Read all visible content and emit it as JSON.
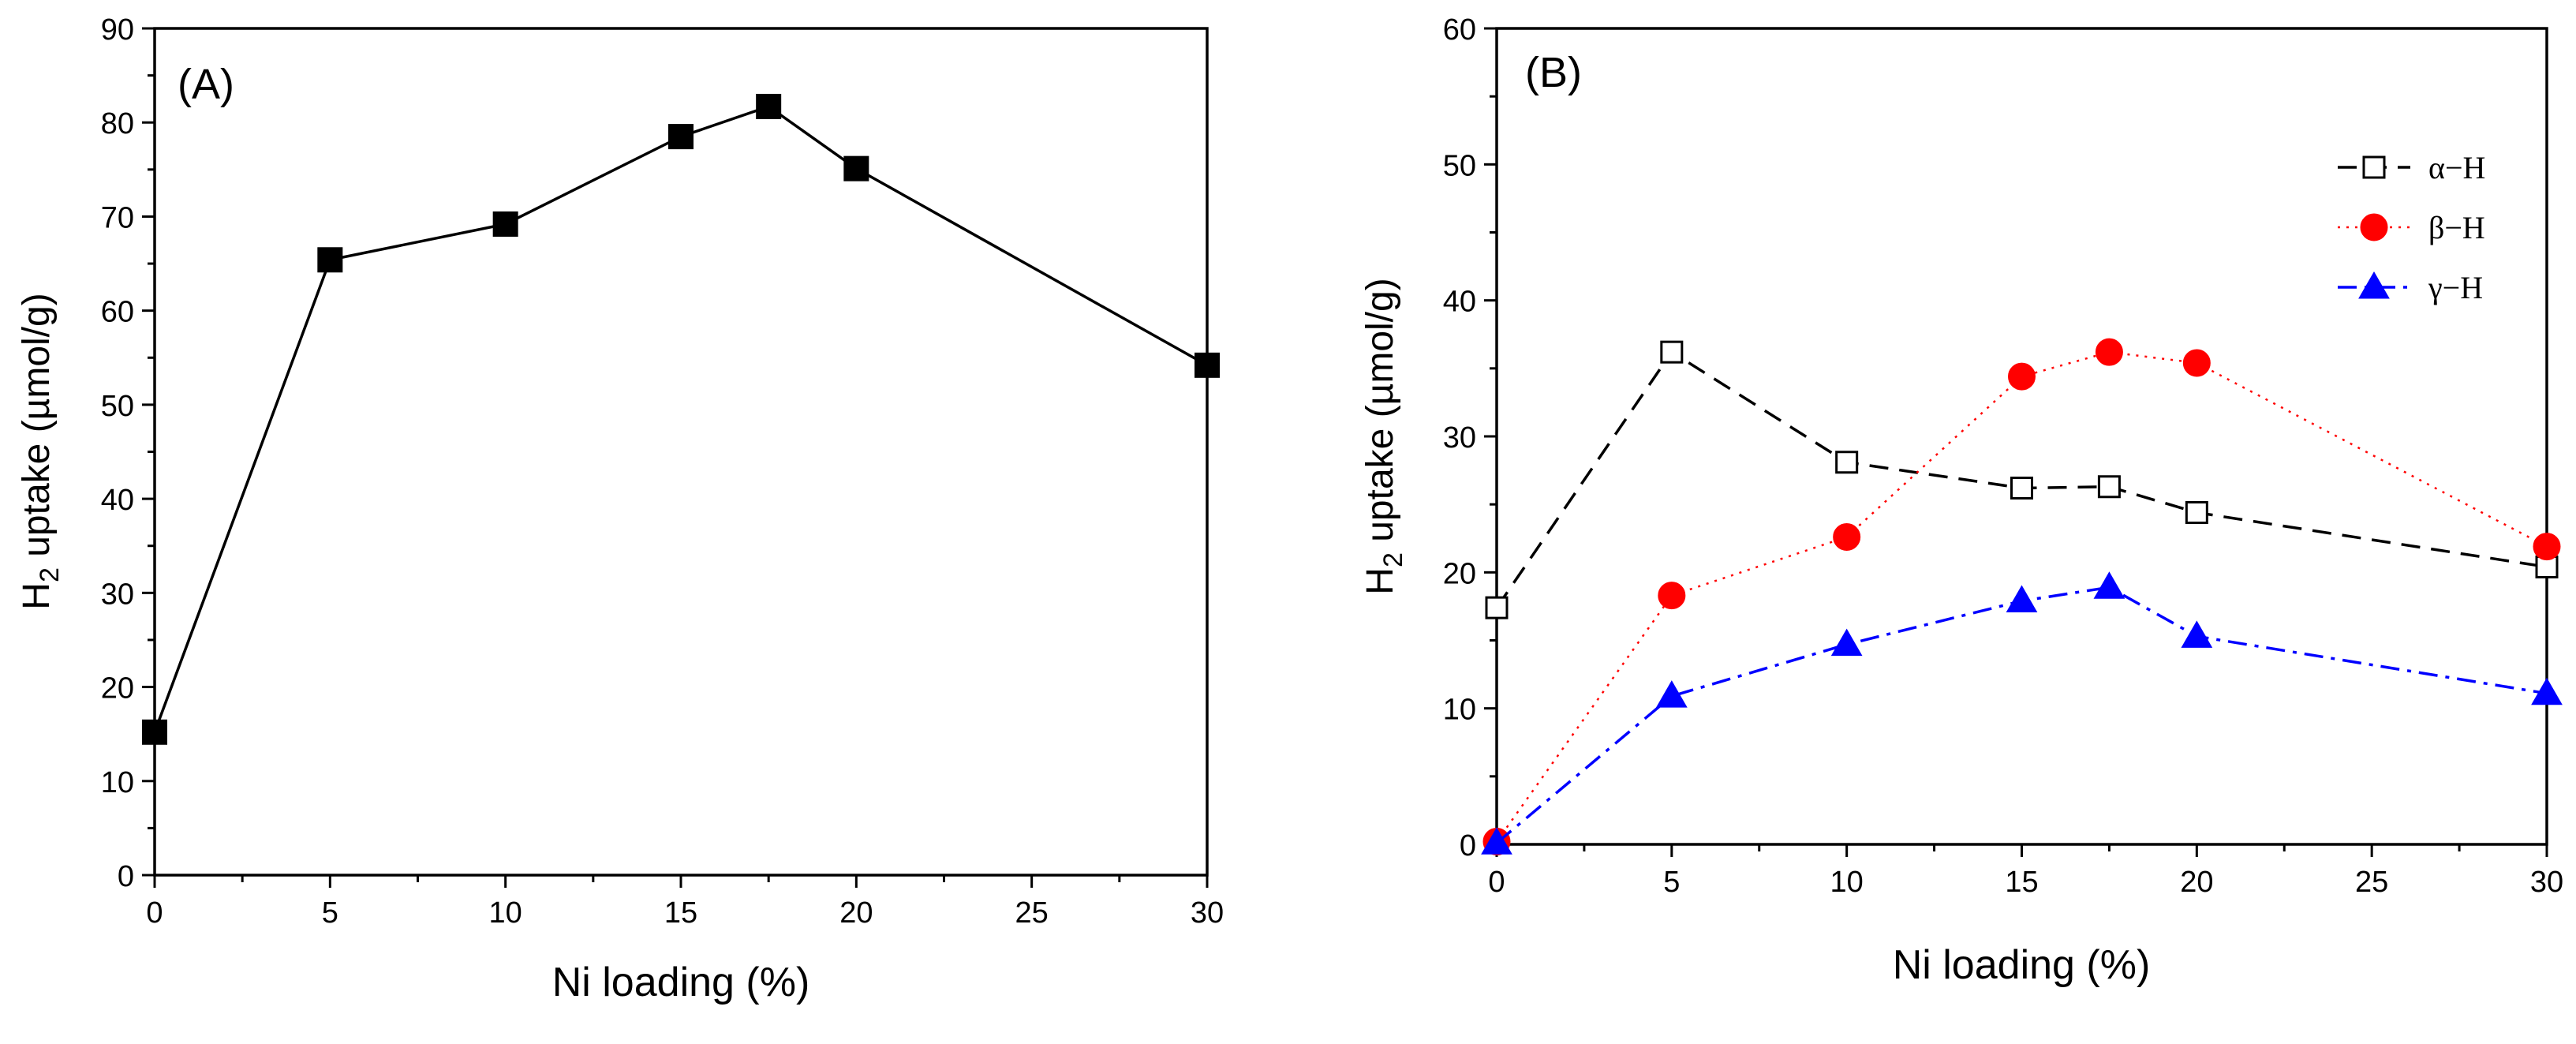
{
  "chart_data": [
    {
      "id": "A",
      "type": "line",
      "panel_label": "(A)",
      "title": "",
      "xlabel": "Ni loading (%)",
      "ylabel_main": "H",
      "ylabel_sub": "2",
      "ylabel_rest": " uptake (µmol/g)",
      "xlim": [
        0,
        30
      ],
      "ylim": [
        0,
        90
      ],
      "xticks": [
        0,
        5,
        10,
        15,
        20,
        25,
        30
      ],
      "yticks": [
        0,
        10,
        20,
        30,
        40,
        50,
        60,
        70,
        80,
        90
      ],
      "series": [
        {
          "name": "",
          "x": [
            0,
            5,
            10,
            15,
            17.5,
            20,
            30
          ],
          "values": [
            15.2,
            65.4,
            69.2,
            78.5,
            81.7,
            75.1,
            54.2
          ],
          "color": "#000000",
          "marker": "square-filled",
          "line": "solid"
        }
      ]
    },
    {
      "id": "B",
      "type": "line",
      "panel_label": "(B)",
      "title": "",
      "xlabel": "Ni loading (%)",
      "ylabel_main": "H",
      "ylabel_sub": "2",
      "ylabel_rest": " uptake (µmol/g)",
      "xlim": [
        0,
        30
      ],
      "ylim": [
        0,
        60
      ],
      "xticks": [
        0,
        5,
        10,
        15,
        20,
        25,
        30
      ],
      "yticks": [
        0,
        10,
        20,
        30,
        40,
        50,
        60
      ],
      "legend_position": "top-right",
      "series": [
        {
          "name": "α−H",
          "x": [
            0,
            5,
            10,
            15,
            17.5,
            20,
            30
          ],
          "values": [
            17.4,
            36.2,
            28.1,
            26.2,
            26.3,
            24.4,
            20.4
          ],
          "color": "#000000",
          "marker": "square-open",
          "line": "dashed"
        },
        {
          "name": "β−H",
          "x": [
            0,
            5,
            10,
            15,
            17.5,
            20,
            30
          ],
          "values": [
            0.2,
            18.3,
            22.6,
            34.4,
            36.2,
            35.4,
            21.9
          ],
          "color": "#ff0000",
          "marker": "circle-filled",
          "line": "dotted"
        },
        {
          "name": "γ−H",
          "x": [
            0,
            5,
            10,
            15,
            17.5,
            20,
            30
          ],
          "values": [
            0.1,
            10.9,
            14.7,
            17.9,
            18.9,
            15.3,
            11.1
          ],
          "color": "#0000ff",
          "marker": "triangle-filled",
          "line": "dashdot"
        }
      ]
    }
  ]
}
